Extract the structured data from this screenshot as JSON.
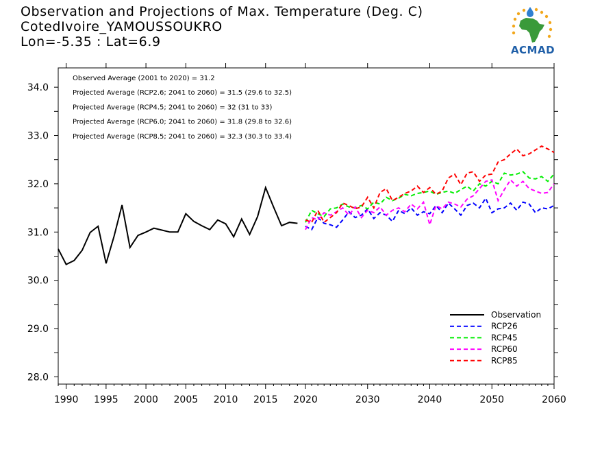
{
  "header": {
    "title_lines": [
      "Observation and Projections of Max. Temperature (Deg. C)",
      "CotedIvoire_YAMOUSSOUKRO",
      "Lon=-5.35 : Lat=6.9"
    ],
    "logo_text": "ACMAD"
  },
  "colors": {
    "Observation": "#000000",
    "RCP26": "#0000ff",
    "RCP45": "#00ee00",
    "RCP60": "#ff00ff",
    "RCP85": "#ff0000"
  },
  "chart_data": {
    "type": "line",
    "title": "Observation and Projections of Max. Temperature (Deg. C)",
    "xlim": [
      1989,
      2060
    ],
    "ylim": [
      27.85,
      34.4
    ],
    "x_ticks": [
      1990,
      1995,
      2000,
      2005,
      2010,
      2015,
      2020,
      2030,
      2040,
      2050,
      2060
    ],
    "y_ticks": [
      "28.0",
      "29.0",
      "30.0",
      "31.0",
      "32.0",
      "33.0",
      "34.0"
    ],
    "annotations": [
      "Observed Average (2001 to 2020) = 31.2",
      "Projected Average (RCP2.6; 2041 to 2060) = 31.5 (29.6 to 32.5)",
      "Projected Average (RCP4.5; 2041 to 2060) = 32 (31 to 33)",
      "Projected Average (RCP6.0; 2041 to 2060) = 31.8 (29.8 to 32.6)",
      "Projected Average (RCP8.5; 2041 to 2060) = 32.3 (30.3 to 33.4)"
    ],
    "legend": [
      "Observation",
      "RCP26",
      "RCP45",
      "RCP60",
      "RCP85"
    ],
    "legend_position": "bottom-right",
    "series": [
      {
        "name": "Observation",
        "style": "solid",
        "x": [
          1989,
          1990,
          1991,
          1992,
          1993,
          1994,
          1995,
          1996,
          1997,
          1998,
          1999,
          2000,
          2001,
          2002,
          2003,
          2004,
          2005,
          2006,
          2007,
          2008,
          2009,
          2010,
          2011,
          2012,
          2013,
          2014,
          2015,
          2016,
          2017,
          2018,
          2019
        ],
        "y": [
          30.65,
          30.33,
          30.41,
          30.62,
          30.99,
          31.12,
          30.35,
          30.91,
          31.56,
          30.68,
          30.93,
          31.0,
          31.08,
          31.04,
          31.0,
          31.0,
          31.38,
          31.22,
          31.13,
          31.05,
          31.25,
          31.17,
          30.9,
          31.27,
          30.95,
          31.32,
          31.92,
          31.52,
          31.13,
          31.2,
          31.18
        ]
      },
      {
        "name": "RCP26",
        "style": "dashed",
        "x": [
          2020,
          2021,
          2022,
          2023,
          2024,
          2025,
          2026,
          2027,
          2028,
          2029,
          2030,
          2031,
          2032,
          2033,
          2034,
          2035,
          2036,
          2037,
          2038,
          2039,
          2040,
          2041,
          2042,
          2043,
          2044,
          2045,
          2046,
          2047,
          2048,
          2049,
          2050,
          2051,
          2052,
          2053,
          2054,
          2055,
          2056,
          2057,
          2058,
          2059,
          2060
        ],
        "y": [
          31.12,
          31.05,
          31.3,
          31.18,
          31.15,
          31.1,
          31.25,
          31.42,
          31.3,
          31.35,
          31.48,
          31.28,
          31.4,
          31.35,
          31.22,
          31.45,
          31.38,
          31.5,
          31.35,
          31.42,
          31.38,
          31.55,
          31.4,
          31.6,
          31.48,
          31.35,
          31.55,
          31.6,
          31.5,
          31.7,
          31.4,
          31.48,
          31.5,
          31.6,
          31.45,
          31.62,
          31.58,
          31.4,
          31.5,
          31.48,
          31.55
        ]
      },
      {
        "name": "RCP45",
        "style": "dashed",
        "x": [
          2020,
          2021,
          2022,
          2023,
          2024,
          2025,
          2026,
          2027,
          2028,
          2029,
          2030,
          2031,
          2032,
          2033,
          2034,
          2035,
          2036,
          2037,
          2038,
          2039,
          2040,
          2041,
          2042,
          2043,
          2044,
          2045,
          2046,
          2047,
          2048,
          2049,
          2050,
          2051,
          2052,
          2053,
          2054,
          2055,
          2056,
          2057,
          2058,
          2059,
          2060
        ],
        "y": [
          31.2,
          31.45,
          31.38,
          31.32,
          31.48,
          31.5,
          31.58,
          31.52,
          31.5,
          31.55,
          31.48,
          31.62,
          31.58,
          31.72,
          31.65,
          31.7,
          31.78,
          31.75,
          31.8,
          31.82,
          31.85,
          31.78,
          31.82,
          31.85,
          31.8,
          31.88,
          31.95,
          31.85,
          32.0,
          31.95,
          32.05,
          32.0,
          32.22,
          32.18,
          32.2,
          32.25,
          32.12,
          32.1,
          32.15,
          32.05,
          32.2
        ]
      },
      {
        "name": "RCP60",
        "style": "dashed",
        "x": [
          2020,
          2021,
          2022,
          2023,
          2024,
          2025,
          2026,
          2027,
          2028,
          2029,
          2030,
          2031,
          2032,
          2033,
          2034,
          2035,
          2036,
          2037,
          2038,
          2039,
          2040,
          2041,
          2042,
          2043,
          2044,
          2045,
          2046,
          2047,
          2048,
          2049,
          2050,
          2051,
          2052,
          2053,
          2054,
          2055,
          2056,
          2057,
          2058,
          2059,
          2060
        ],
        "y": [
          31.05,
          31.3,
          31.25,
          31.4,
          31.35,
          31.42,
          31.5,
          31.35,
          31.52,
          31.3,
          31.45,
          31.4,
          31.52,
          31.35,
          31.45,
          31.5,
          31.42,
          31.58,
          31.48,
          31.62,
          31.15,
          31.55,
          31.48,
          31.62,
          31.58,
          31.52,
          31.68,
          31.75,
          31.9,
          32.05,
          32.08,
          31.65,
          31.88,
          32.08,
          31.95,
          32.05,
          31.9,
          31.85,
          31.8,
          31.82,
          32.0
        ]
      },
      {
        "name": "RCP85",
        "style": "dashed",
        "x": [
          2020,
          2021,
          2022,
          2023,
          2024,
          2025,
          2026,
          2027,
          2028,
          2029,
          2030,
          2031,
          2032,
          2033,
          2034,
          2035,
          2036,
          2037,
          2038,
          2039,
          2040,
          2041,
          2042,
          2043,
          2044,
          2045,
          2046,
          2047,
          2048,
          2049,
          2050,
          2051,
          2052,
          2053,
          2054,
          2055,
          2056,
          2057,
          2058,
          2059,
          2060
        ],
        "y": [
          31.25,
          31.2,
          31.45,
          31.2,
          31.3,
          31.4,
          31.6,
          31.55,
          31.48,
          31.52,
          31.72,
          31.5,
          31.82,
          31.9,
          31.65,
          31.72,
          31.8,
          31.85,
          31.95,
          31.82,
          31.92,
          31.78,
          31.85,
          32.12,
          32.2,
          31.98,
          32.22,
          32.25,
          32.05,
          32.18,
          32.2,
          32.45,
          32.5,
          32.62,
          32.72,
          32.58,
          32.62,
          32.7,
          32.78,
          32.72,
          32.65
        ]
      }
    ]
  }
}
